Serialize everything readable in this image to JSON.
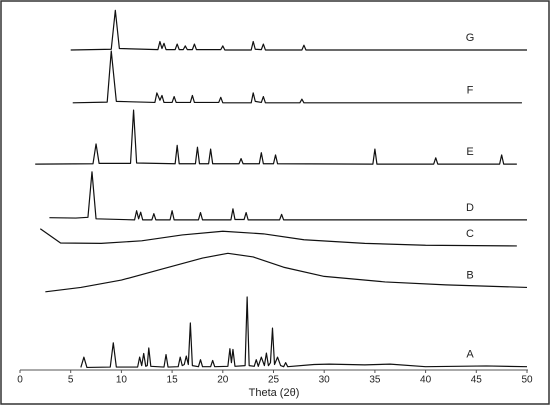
{
  "chart_data": {
    "type": "line",
    "x_label": "Theta (2θ)",
    "xlim": [
      0,
      50
    ],
    "xticks": [
      0,
      5,
      10,
      15,
      20,
      25,
      30,
      35,
      40,
      45,
      50
    ],
    "ylim": [
      0,
      100
    ],
    "series": [
      {
        "name": "G",
        "color": "#111111",
        "x": [
          5,
          9.0,
          9.4,
          9.8,
          13.6,
          13.8,
          14.0,
          14.2,
          14.4,
          15.3,
          15.5,
          15.7,
          16.1,
          16.3,
          16.5,
          17.0,
          17.2,
          17.4,
          19.8,
          20.0,
          20.2,
          22.8,
          23.0,
          23.2,
          23.8,
          24.0,
          24.2,
          27.8,
          28.0,
          28.2,
          50
        ],
        "values": [
          87.2,
          87.4,
          98,
          87.6,
          87.3,
          89.5,
          87.6,
          89,
          87.3,
          87.3,
          88.8,
          87.3,
          87.3,
          88.3,
          87.3,
          87.3,
          88.8,
          87.3,
          87.3,
          88.3,
          87.2,
          87.2,
          89.5,
          87.4,
          87.3,
          88.8,
          87.2,
          87.2,
          88.5,
          87.2,
          87.2
        ]
      },
      {
        "name": "F",
        "color": "#111111",
        "x": [
          5.2,
          8.6,
          9.0,
          9.5,
          13.3,
          13.5,
          13.8,
          14.0,
          14.2,
          15.0,
          15.2,
          15.4,
          16.8,
          17.0,
          17.2,
          19.6,
          19.8,
          20.0,
          22.8,
          23.0,
          23.2,
          23.8,
          24.0,
          24.2,
          27.6,
          27.8,
          28.0,
          49.5
        ],
        "values": [
          72.8,
          73.0,
          86.9,
          73.2,
          72.9,
          75.5,
          73.5,
          74.8,
          72.9,
          72.9,
          74.5,
          72.9,
          72.9,
          74.8,
          72.9,
          72.9,
          74.3,
          72.8,
          72.8,
          75.5,
          73.2,
          72.9,
          74.5,
          72.8,
          72.8,
          73.8,
          72.8,
          72.8
        ]
      },
      {
        "name": "E",
        "color": "#111111",
        "x": [
          1.5,
          7.2,
          7.5,
          7.8,
          10.9,
          11.2,
          11.5,
          15.3,
          15.5,
          15.7,
          17.3,
          17.5,
          17.7,
          18.6,
          18.8,
          19.0,
          21.6,
          21.8,
          22.0,
          23.6,
          23.8,
          24.0,
          25.0,
          25.2,
          25.4,
          34.8,
          35.0,
          35.2,
          40.8,
          41.0,
          41.2,
          47.3,
          47.5,
          47.7,
          49
        ],
        "values": [
          56.1,
          56.2,
          61.6,
          56.3,
          56.3,
          70.8,
          56.4,
          56.2,
          61.2,
          56.2,
          56.2,
          60.7,
          56.2,
          56.2,
          60.2,
          56.2,
          56.2,
          57.6,
          56.2,
          56.2,
          59.2,
          56.2,
          56.2,
          58.6,
          56.2,
          56.1,
          60.2,
          56.1,
          56.1,
          57.8,
          56.1,
          56.1,
          58.6,
          56.1,
          56.1
        ]
      },
      {
        "name": "D",
        "color": "#111111",
        "x": [
          2.9,
          5.5,
          6.7,
          7.1,
          7.5,
          11.3,
          11.5,
          11.7,
          11.9,
          12.1,
          13.0,
          13.2,
          13.4,
          14.8,
          15.0,
          15.2,
          17.6,
          17.8,
          18.0,
          20.8,
          21.0,
          21.2,
          22.1,
          22.3,
          22.5,
          25.6,
          25.8,
          26.0,
          50
        ],
        "values": [
          41.5,
          41.4,
          41.6,
          54,
          41.2,
          40.9,
          43.4,
          41.2,
          43,
          40.9,
          40.9,
          42.6,
          40.9,
          40.9,
          43.4,
          40.9,
          40.9,
          42.9,
          40.9,
          40.9,
          43.9,
          41,
          41,
          42.9,
          40.9,
          40.9,
          42.4,
          40.9,
          40.9
        ]
      },
      {
        "name": "C",
        "color": "#111111",
        "x": [
          2,
          4,
          8,
          12,
          16,
          20,
          24,
          28,
          34,
          40,
          49
        ],
        "values": [
          38.5,
          34.6,
          34.5,
          35.2,
          36.8,
          37.8,
          37.1,
          35.5,
          34.5,
          34,
          33.8
        ]
      },
      {
        "name": "B",
        "color": "#111111",
        "x": [
          2.5,
          6,
          10,
          14,
          18,
          20.5,
          23,
          26,
          30,
          36,
          42,
          50
        ],
        "values": [
          21.3,
          22.5,
          24.5,
          27.5,
          30.5,
          31.8,
          30.8,
          28,
          25.5,
          24,
          23.2,
          22.5
        ]
      },
      {
        "name": "A",
        "color": "#111111",
        "x": [
          6.0,
          6.3,
          6.6,
          8.9,
          9.2,
          9.5,
          11.6,
          11.8,
          12.0,
          12.2,
          12.4,
          12.55,
          12.7,
          12.9,
          14.2,
          14.4,
          14.6,
          15.6,
          15.8,
          16.0,
          16.2,
          16.4,
          16.6,
          16.8,
          17.0,
          17.6,
          17.8,
          18.0,
          18.8,
          19.0,
          19.2,
          20.5,
          20.7,
          20.85,
          21.0,
          21.2,
          22.2,
          22.4,
          22.6,
          23.1,
          23.3,
          23.5,
          23.8,
          24.1,
          24.3,
          24.5,
          24.7,
          24.9,
          25.1,
          25.4,
          25.7,
          26.0,
          26.2,
          26.4,
          29,
          30.5,
          34,
          36.5,
          40,
          46,
          50
        ],
        "values": [
          0.7,
          3.5,
          0.7,
          0.8,
          7.4,
          0.8,
          0.8,
          3.5,
          1.2,
          4.5,
          1.0,
          1.2,
          6.0,
          1.0,
          0.8,
          4.2,
          0.8,
          0.9,
          3.5,
          1.2,
          1.5,
          3.8,
          1.5,
          12.8,
          1.2,
          0.9,
          2.8,
          0.9,
          0.9,
          2.6,
          0.9,
          1.0,
          5.8,
          2.0,
          5.6,
          1.0,
          1.2,
          19.9,
          1.2,
          1.0,
          2.8,
          1.0,
          3.5,
          1.2,
          4.6,
          1.2,
          2.0,
          11.4,
          1.5,
          3.5,
          1.2,
          0.9,
          2.0,
          0.9,
          1.5,
          1.6,
          1.4,
          1.6,
          0.9,
          1.1,
          0.9
        ]
      }
    ]
  }
}
